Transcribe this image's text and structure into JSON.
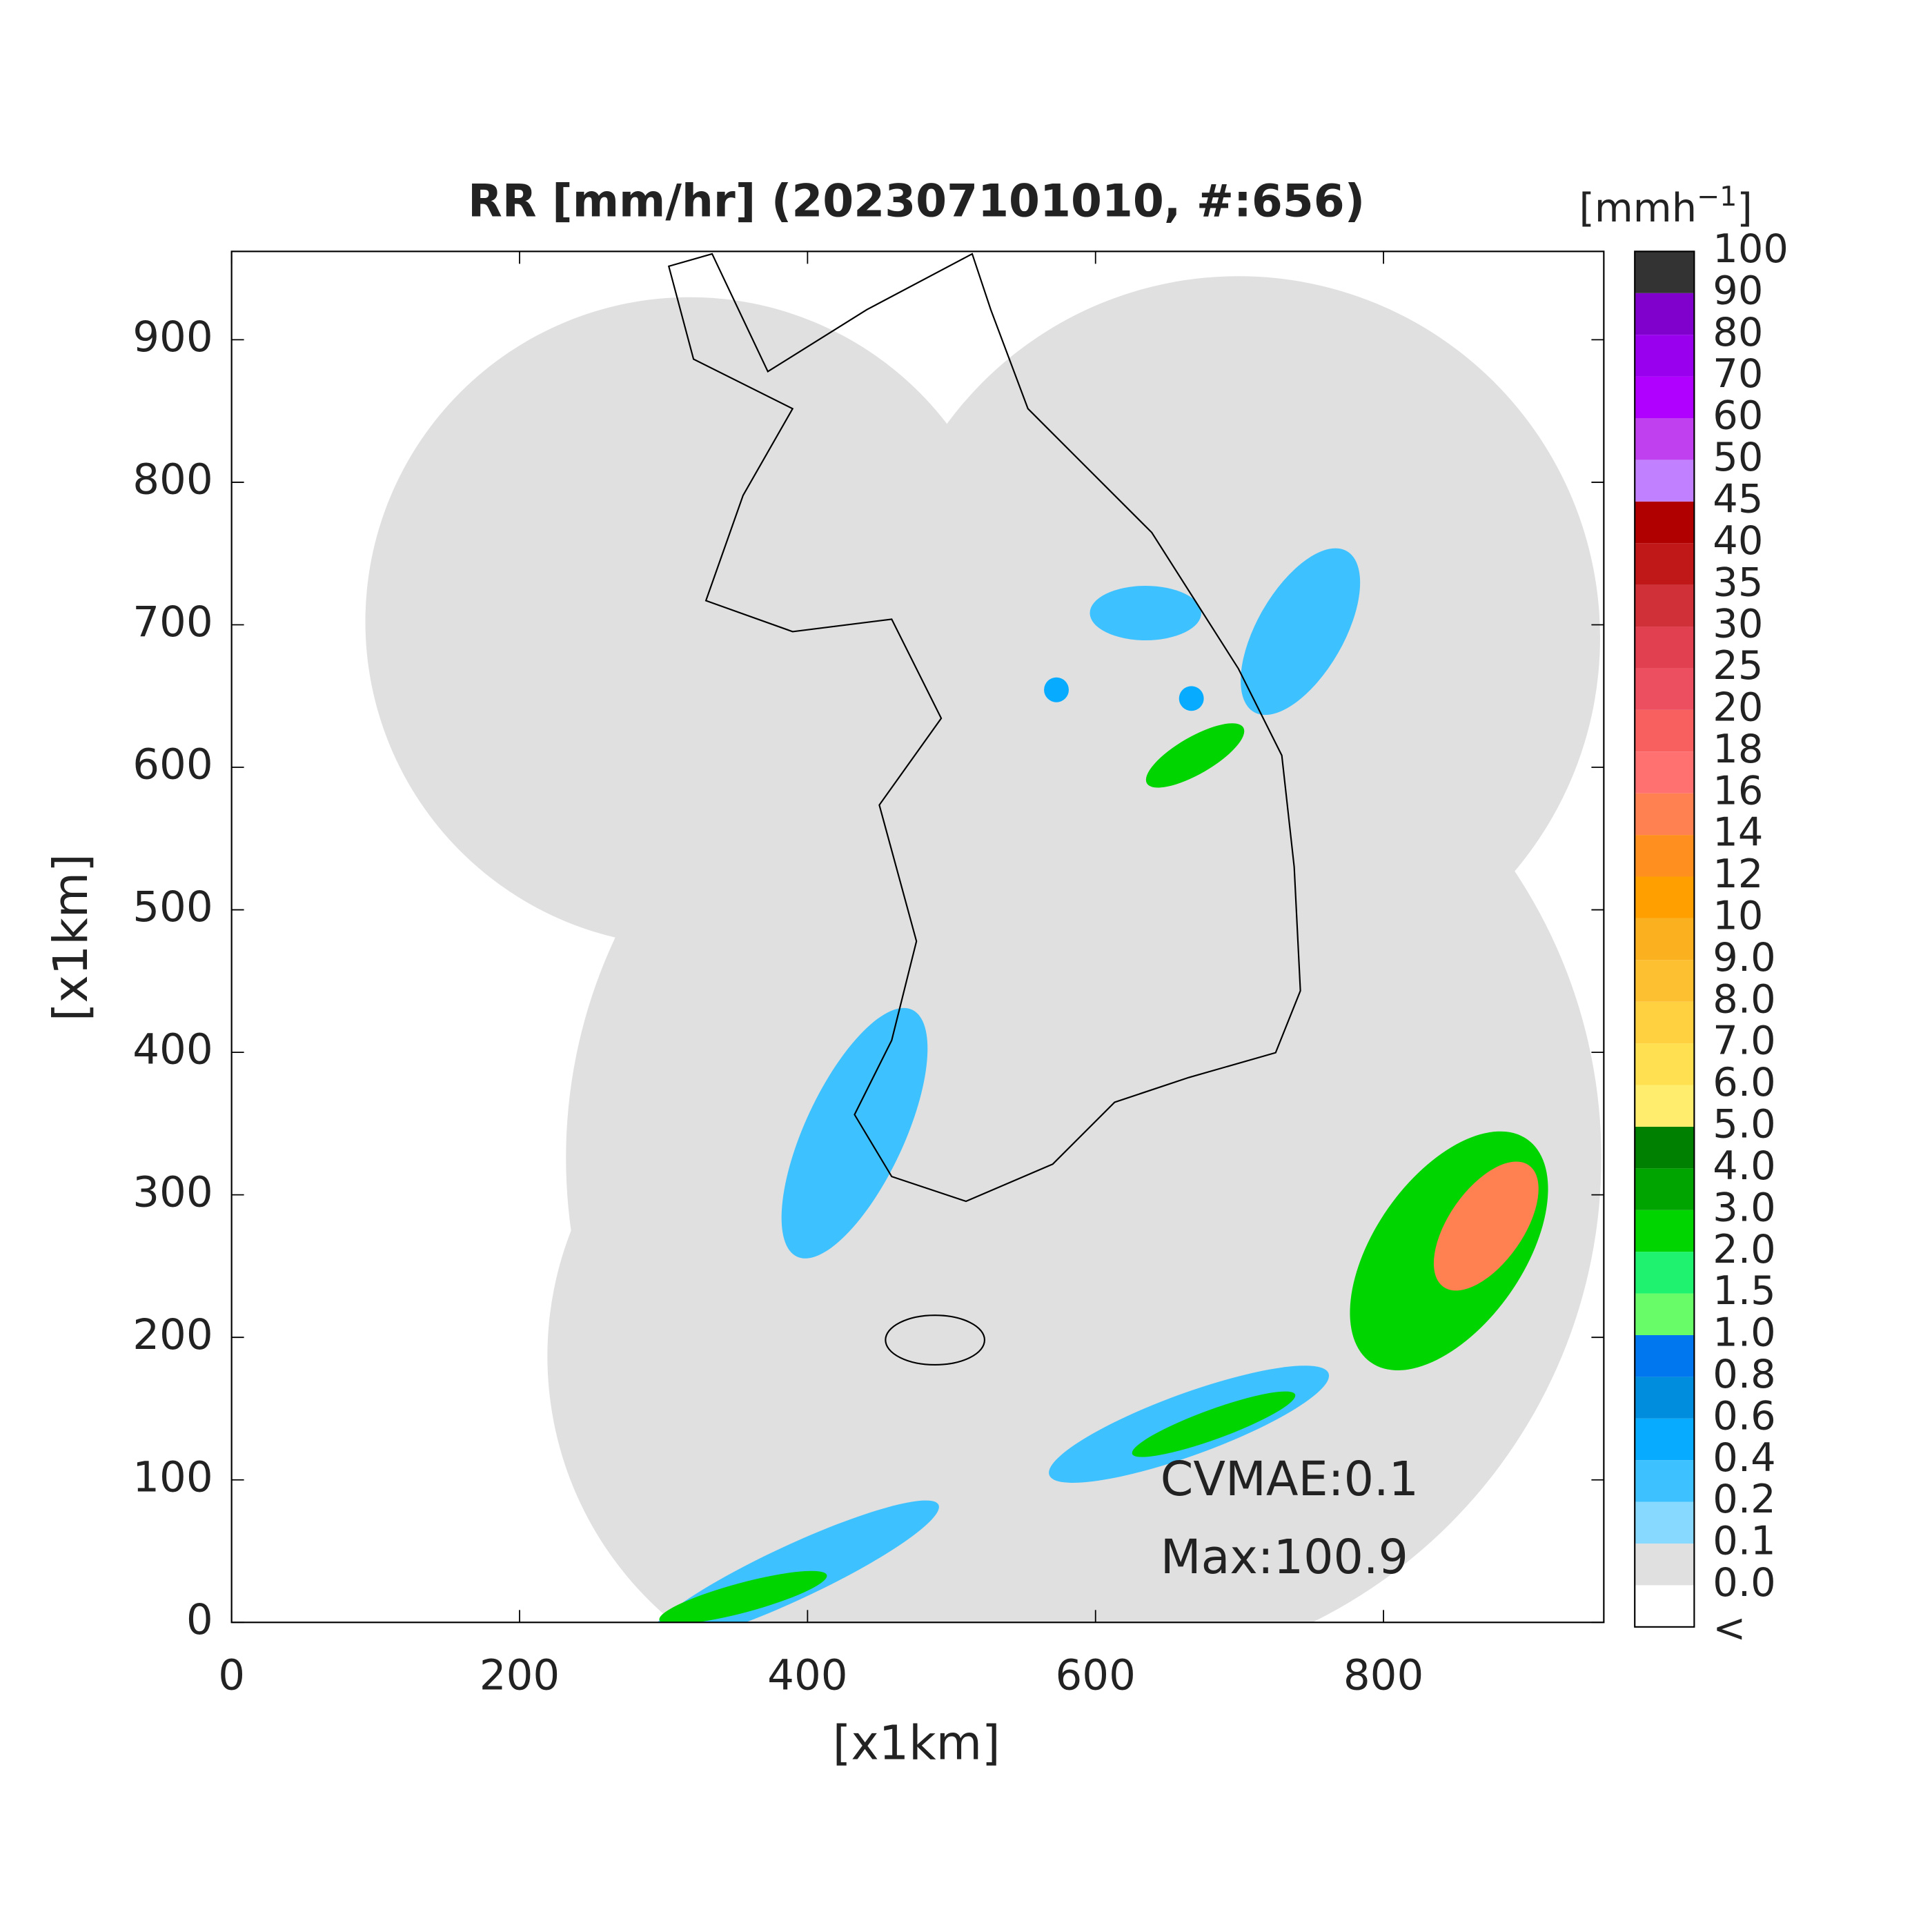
{
  "chart_data": {
    "type": "map",
    "title": "RR [mm/hr] (202307101010, #:656)",
    "xlabel": "[x1km]",
    "ylabel": "[x1km]",
    "xlim": [
      0,
      953
    ],
    "ylim": [
      0,
      962
    ],
    "xticks": [
      0,
      200,
      400,
      600,
      800
    ],
    "yticks": [
      0,
      100,
      200,
      300,
      400,
      500,
      600,
      700,
      800,
      900
    ],
    "annotations": [
      "CVMAE:0.1",
      "Max:100.9"
    ],
    "colorbar": {
      "label": [
        "[mmh",
        "−1",
        "]"
      ],
      "levels": [
        "<",
        "0.0",
        "0.1",
        "0.2",
        "0.4",
        "0.6",
        "0.8",
        "1.0",
        "1.5",
        "2.0",
        "3.0",
        "4.0",
        "5.0",
        "6.0",
        "7.0",
        "8.0",
        "9.0",
        "10",
        "12",
        "14",
        "16",
        "18",
        "20",
        "25",
        "30",
        "35",
        "40",
        "45",
        "50",
        "60",
        "70",
        "80",
        "90",
        "100"
      ],
      "colors": [
        "#ffffff",
        "#e0e0e0",
        "#87d9ff",
        "#3ec1ff",
        "#07abff",
        "#008dde",
        "#0077ee",
        "#69fc69",
        "#1ef26e",
        "#00d500",
        "#00a400",
        "#008000",
        "#ffee6e",
        "#ffe050",
        "#ffd040",
        "#fcc030",
        "#fbb020",
        "#ffa000",
        "#ff9020",
        "#ff8050",
        "#ff7070",
        "#f86060",
        "#ec5060",
        "#e04050",
        "#d03038",
        "#c01818",
        "#b00000",
        "#c080ff",
        "#c040f0",
        "#b000ff",
        "#9900ee",
        "#8000cc",
        "#333333"
      ]
    }
  }
}
